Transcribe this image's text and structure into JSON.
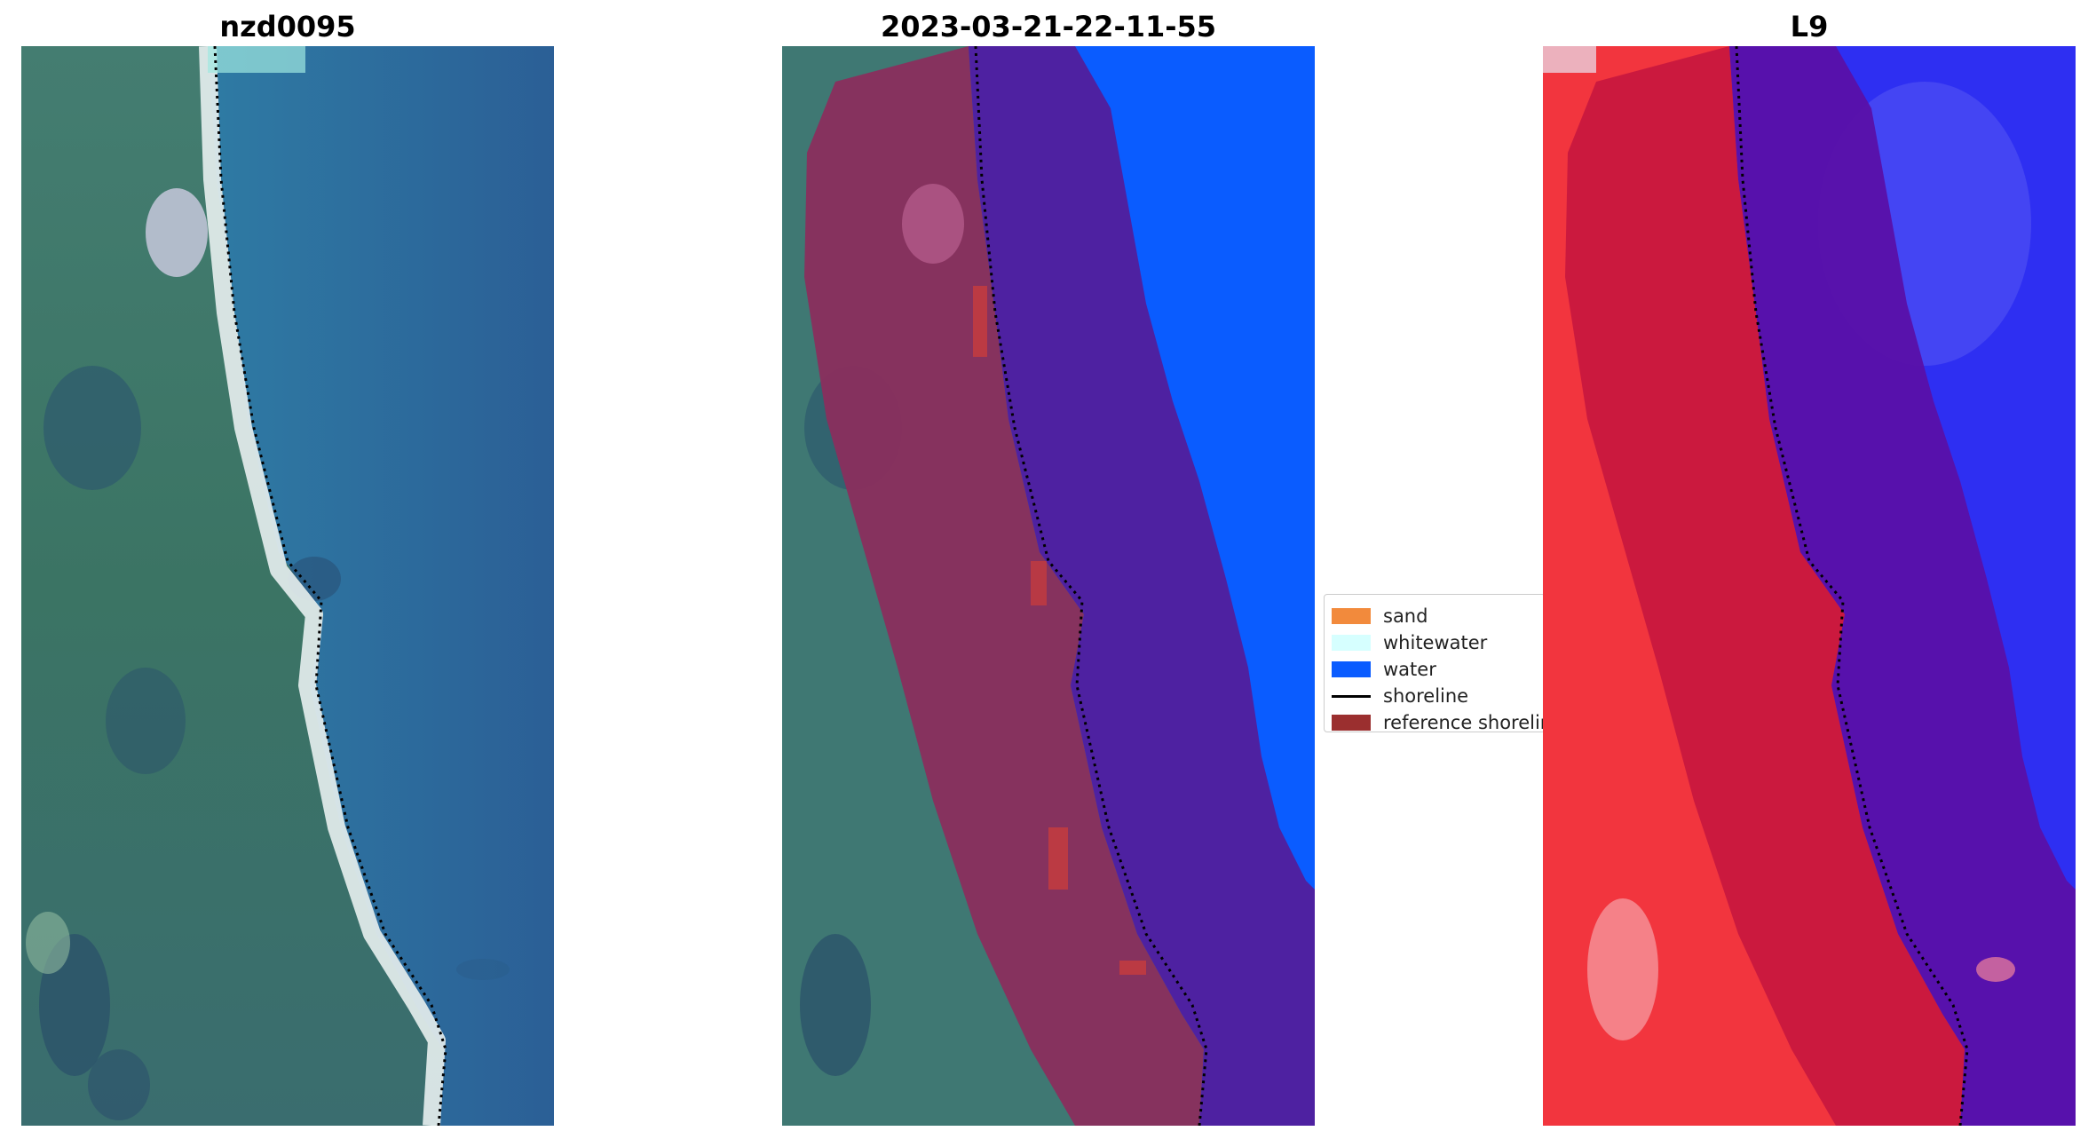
{
  "titles": {
    "left": "nzd0095",
    "middle": "2023-03-21-22-11-55",
    "right": "L9"
  },
  "legend": {
    "items": [
      {
        "label": "sand",
        "color": "#f28a3c",
        "kind": "patch"
      },
      {
        "label": "whitewater",
        "color": "#d6ffff",
        "kind": "patch"
      },
      {
        "label": "water",
        "color": "#0a5cff",
        "kind": "patch"
      },
      {
        "label": "shoreline",
        "color": "#000000",
        "kind": "line"
      },
      {
        "label": "reference shoreline",
        "color": "#9b2f2f",
        "kind": "patch"
      }
    ]
  },
  "colors": {
    "ocean": "#2c6598",
    "land": "#3f7873",
    "beach": "#e4eded",
    "water_class": "#0a5cff",
    "buffer_land_overlay": "#8c2c5c",
    "buffer_water_overlay": "#521e9c",
    "ir_land": "#f2353e",
    "ir_water": "#2e2ff2",
    "ir_buffer_land": "#c8173e",
    "ir_buffer_water": "#5a10a8"
  }
}
